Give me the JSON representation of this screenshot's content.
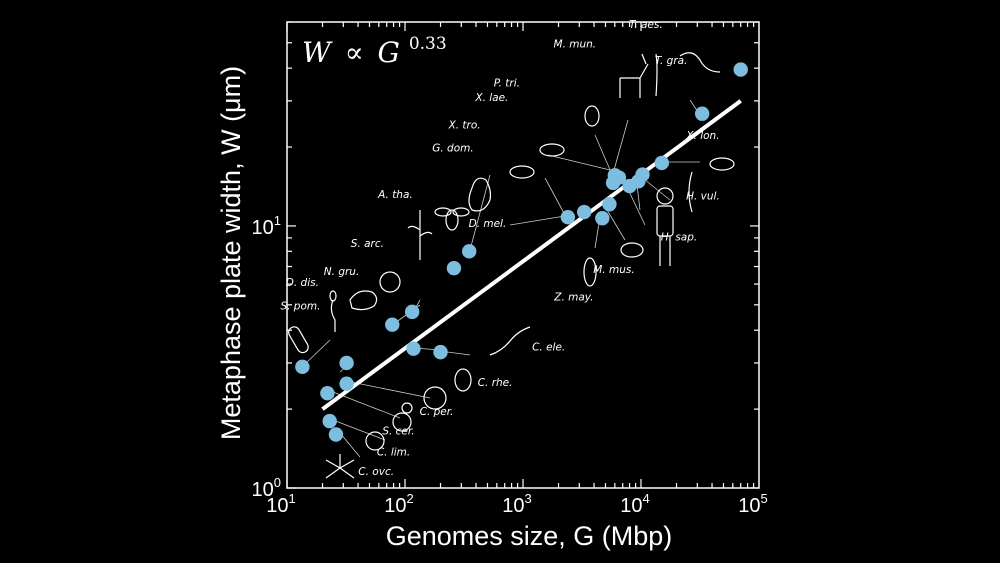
{
  "chart_data": {
    "type": "scatter",
    "title": "",
    "xlabel": "Genomes size, G (Mbp)",
    "ylabel": "Metaphase plate width, W (μm)",
    "x_scale": "log",
    "y_scale": "log",
    "xlim": [
      10,
      100000
    ],
    "ylim": [
      1,
      60
    ],
    "x_ticks": [
      {
        "value": 10,
        "mantissa": "10",
        "exp": "1"
      },
      {
        "value": 100,
        "mantissa": "10",
        "exp": "2"
      },
      {
        "value": 1000,
        "mantissa": "10",
        "exp": "3"
      },
      {
        "value": 10000,
        "mantissa": "10",
        "exp": "4"
      },
      {
        "value": 100000,
        "mantissa": "10",
        "exp": "5"
      }
    ],
    "y_ticks": [
      {
        "value": 1,
        "mantissa": "10",
        "exp": "0"
      },
      {
        "value": 10,
        "mantissa": "10",
        "exp": "1"
      }
    ],
    "grid": false,
    "annotation": {
      "lhs": "W",
      "rel": "∝",
      "base": "G",
      "exp": "0.33"
    },
    "fit": {
      "exponent": 0.33,
      "x_range": [
        20,
        70000
      ],
      "y_range": [
        2.0,
        30
      ]
    },
    "species_labels": [
      {
        "text": "S. pom.",
        "x": 13,
        "y": 4.8
      },
      {
        "text": "D. dis.",
        "x": 13.5,
        "y": 5.9
      },
      {
        "text": "N. gru.",
        "x": 29,
        "y": 6.5
      },
      {
        "text": "S. arc.",
        "x": 48,
        "y": 8.3
      },
      {
        "text": "A. tha.",
        "x": 83,
        "y": 12.8
      },
      {
        "text": "G. dom.",
        "x": 255,
        "y": 19.2
      },
      {
        "text": "X. tro.",
        "x": 320,
        "y": 23.5
      },
      {
        "text": "X. lae.",
        "x": 545,
        "y": 30
      },
      {
        "text": "P. tri.",
        "x": 730,
        "y": 34
      },
      {
        "text": "M. mun.",
        "x": 2750,
        "y": 48
      },
      {
        "text": "T. aes.",
        "x": 11000,
        "y": 57
      },
      {
        "text": "T. gra.",
        "x": 18000,
        "y": 41.5
      },
      {
        "text": "X. lon.",
        "x": 33500,
        "y": 21.5
      },
      {
        "text": "H. vul.",
        "x": 33500,
        "y": 12.6
      },
      {
        "text": "H. sap.",
        "x": 21000,
        "y": 8.8
      },
      {
        "text": "M. mus.",
        "x": 5900,
        "y": 6.6
      },
      {
        "text": "Z. may.",
        "x": 2700,
        "y": 5.2
      },
      {
        "text": "D. mel.",
        "x": 500,
        "y": 9.9
      },
      {
        "text": "C. ele.",
        "x": 1650,
        "y": 3.35
      },
      {
        "text": "C. rhe.",
        "x": 580,
        "y": 2.45
      },
      {
        "text": "C. per.",
        "x": 185,
        "y": 1.9
      },
      {
        "text": "S. cer.",
        "x": 88,
        "y": 1.6
      },
      {
        "text": "C. lim.",
        "x": 80,
        "y": 1.33
      },
      {
        "text": "C. ovc.",
        "x": 57,
        "y": 1.12
      }
    ],
    "points": [
      {
        "x": 13.5,
        "y": 2.9
      },
      {
        "x": 22,
        "y": 2.3
      },
      {
        "x": 23,
        "y": 1.8
      },
      {
        "x": 26,
        "y": 1.6
      },
      {
        "x": 32,
        "y": 2.5
      },
      {
        "x": 32,
        "y": 3.0
      },
      {
        "x": 78,
        "y": 4.2
      },
      {
        "x": 115,
        "y": 4.7
      },
      {
        "x": 118,
        "y": 3.4
      },
      {
        "x": 200,
        "y": 3.3
      },
      {
        "x": 260,
        "y": 6.9
      },
      {
        "x": 350,
        "y": 8.0
      },
      {
        "x": 2400,
        "y": 10.8
      },
      {
        "x": 3300,
        "y": 11.3
      },
      {
        "x": 4700,
        "y": 10.7
      },
      {
        "x": 5400,
        "y": 12.1
      },
      {
        "x": 5800,
        "y": 14.6
      },
      {
        "x": 6000,
        "y": 15.6
      },
      {
        "x": 6500,
        "y": 15.3
      },
      {
        "x": 8000,
        "y": 14.2
      },
      {
        "x": 9500,
        "y": 14.8
      },
      {
        "x": 10300,
        "y": 15.7
      },
      {
        "x": 15000,
        "y": 17.4
      },
      {
        "x": 33000,
        "y": 26.8
      },
      {
        "x": 70000,
        "y": 39.5
      }
    ]
  }
}
